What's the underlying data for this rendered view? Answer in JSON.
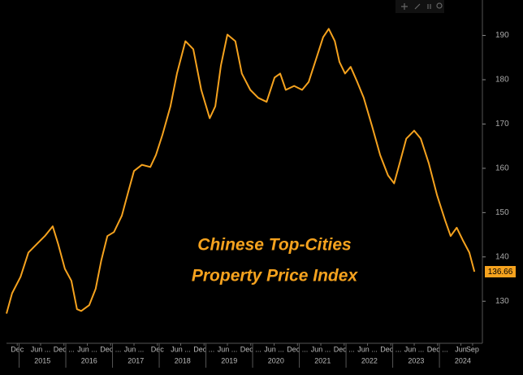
{
  "chart_data": {
    "type": "line",
    "title": [
      "Chinese Top-Cities",
      "Property Price Index"
    ],
    "x": [
      2014.73,
      2014.85,
      2015.03,
      2015.2,
      2015.37,
      2015.55,
      2015.72,
      2015.84,
      2015.98,
      2016.12,
      2016.24,
      2016.33,
      2016.5,
      2016.64,
      2016.76,
      2016.89,
      2017.03,
      2017.2,
      2017.34,
      2017.46,
      2017.63,
      2017.81,
      2017.93,
      2018.07,
      2018.24,
      2018.38,
      2018.56,
      2018.73,
      2018.9,
      2019.08,
      2019.2,
      2019.32,
      2019.46,
      2019.63,
      2019.77,
      2019.95,
      2020.12,
      2020.3,
      2020.47,
      2020.59,
      2020.71,
      2020.89,
      2021.06,
      2021.2,
      2021.37,
      2021.51,
      2021.63,
      2021.76,
      2021.86,
      2021.98,
      2022.1,
      2022.24,
      2022.38,
      2022.56,
      2022.73,
      2022.9,
      2023.03,
      2023.15,
      2023.29,
      2023.46,
      2023.6,
      2023.77,
      2023.95,
      2024.12,
      2024.24,
      2024.37,
      2024.5,
      2024.64,
      2024.75
    ],
    "series": [
      {
        "color": "#f5a21e",
        "values": [
          127.2,
          131.8,
          135.5,
          141,
          142.8,
          144.7,
          146.9,
          142.8,
          137.3,
          134.6,
          128.2,
          127.8,
          129.1,
          132.8,
          139.2,
          144.7,
          145.6,
          149.3,
          154.8,
          159.4,
          160.8,
          160.3,
          163,
          167.6,
          174,
          181.4,
          188.7,
          186.9,
          177.7,
          171.3,
          174,
          183.2,
          190.2,
          188.7,
          181.4,
          177.7,
          175.9,
          175,
          180.5,
          181.4,
          177.7,
          178.6,
          177.7,
          179.5,
          185,
          189.6,
          191.5,
          188.7,
          184,
          181.4,
          182.9,
          179.5,
          175.9,
          169.4,
          163,
          158.4,
          156.6,
          161.2,
          166.7,
          168.5,
          166.7,
          161.2,
          153.9,
          148.3,
          144.7,
          146.6,
          143.8,
          141,
          136.66
        ]
      }
    ],
    "xlim": [
      2014.73,
      2024.92
    ],
    "ylim": [
      120.5,
      198
    ],
    "yticks": [
      130,
      140,
      150,
      160,
      170,
      180,
      190
    ],
    "xticks": [
      {
        "value": 2014.96,
        "label": "Dec"
      },
      {
        "value": 2015.46,
        "label": "Jun ..."
      },
      {
        "value": 2015.96,
        "label": "Dec ..."
      },
      {
        "value": 2016.46,
        "label": "Jun ..."
      },
      {
        "value": 2016.96,
        "label": "Dec ..."
      },
      {
        "value": 2017.46,
        "label": "Jun ..."
      },
      {
        "value": 2017.96,
        "label": "Dec"
      },
      {
        "value": 2018.46,
        "label": "Jun ..."
      },
      {
        "value": 2018.96,
        "label": "Dec ..."
      },
      {
        "value": 2019.46,
        "label": "Jun ..."
      },
      {
        "value": 2019.96,
        "label": "Dec ..."
      },
      {
        "value": 2020.46,
        "label": "Jun ..."
      },
      {
        "value": 2020.96,
        "label": "Dec ..."
      },
      {
        "value": 2021.46,
        "label": "Jun ..."
      },
      {
        "value": 2021.96,
        "label": "Dec ..."
      },
      {
        "value": 2022.46,
        "label": "Jun ..."
      },
      {
        "value": 2022.96,
        "label": "Dec ..."
      },
      {
        "value": 2023.46,
        "label": "Jun ..."
      },
      {
        "value": 2023.96,
        "label": "Dec ..."
      },
      {
        "value": 2024.46,
        "label": "Jun"
      },
      {
        "value": 2024.71,
        "label": "Sep"
      }
    ],
    "year_ticks": [
      2015,
      2016,
      2017,
      2018,
      2019,
      2020,
      2021,
      2022,
      2023,
      2024
    ]
  }
}
